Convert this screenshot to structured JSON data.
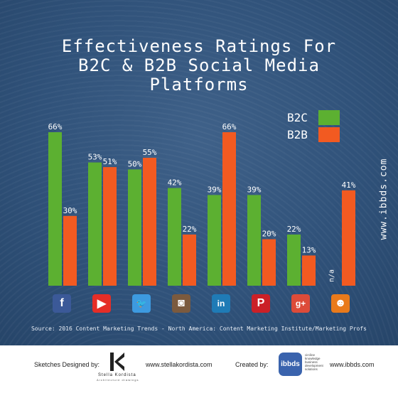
{
  "title_lines": [
    "Effectiveness Ratings For",
    "B2C & B2B Social Media",
    "Platforms"
  ],
  "legend": {
    "b2c": "B2C",
    "b2b": "B2B"
  },
  "colors": {
    "b2c": "#5cb031",
    "b2b": "#f25a21",
    "background": "#30527a"
  },
  "website_vertical": "www.ibbds.com",
  "source": "Source: 2016 Content Marketing Trends - North America: Content Marketing Institute/Marketing Profs",
  "platform_icons": [
    {
      "icon": "facebook-icon",
      "glyph": "f",
      "color": "#3b5998"
    },
    {
      "icon": "youtube-icon",
      "glyph": "▶",
      "color": "#e52d27"
    },
    {
      "icon": "twitter-icon",
      "glyph": "🐦",
      "color": "#3d9ae0"
    },
    {
      "icon": "instagram-icon",
      "glyph": "◙",
      "color": "#7b5a3e"
    },
    {
      "icon": "linkedin-icon",
      "glyph": "in",
      "color": "#1f7bb6"
    },
    {
      "icon": "pinterest-icon",
      "glyph": "P",
      "color": "#cb2027"
    },
    {
      "icon": "google-plus-icon",
      "glyph": "g+",
      "color": "#dd4b39"
    },
    {
      "icon": "slideshare-icon",
      "glyph": "☻",
      "color": "#e97a1b"
    }
  ],
  "chart_data": {
    "type": "bar",
    "title": "Effectiveness Ratings For B2C & B2B Social Media Platforms",
    "categories": [
      "Facebook",
      "YouTube",
      "Twitter",
      "Instagram",
      "LinkedIn",
      "Pinterest",
      "Google+",
      "SlideShare"
    ],
    "series": [
      {
        "name": "B2C",
        "values": [
          66,
          53,
          50,
          42,
          39,
          39,
          22,
          null
        ],
        "labels": [
          "66%",
          "53%",
          "50%",
          "42%",
          "39%",
          "39%",
          "22%",
          "n/a"
        ]
      },
      {
        "name": "B2B",
        "values": [
          30,
          51,
          55,
          22,
          66,
          20,
          13,
          41
        ],
        "labels": [
          "30%",
          "51%",
          "55%",
          "22%",
          "66%",
          "20%",
          "13%",
          "41%"
        ]
      }
    ],
    "ylim": [
      0,
      70
    ],
    "grid": false,
    "legend_position": "top-right"
  },
  "footer": {
    "sketches_label": "Sketches Designed by:",
    "sketches_name": "Stella Kordista",
    "sketches_sub": "Architecture drawings",
    "sketches_url": "www.stellakordista.com",
    "created_label": "Created by:",
    "created_logo": "ibbds",
    "created_text_lines": [
      "circline",
      "knowledge",
      "business",
      "development",
      "solutions"
    ],
    "created_url": "www.ibbds.com"
  }
}
